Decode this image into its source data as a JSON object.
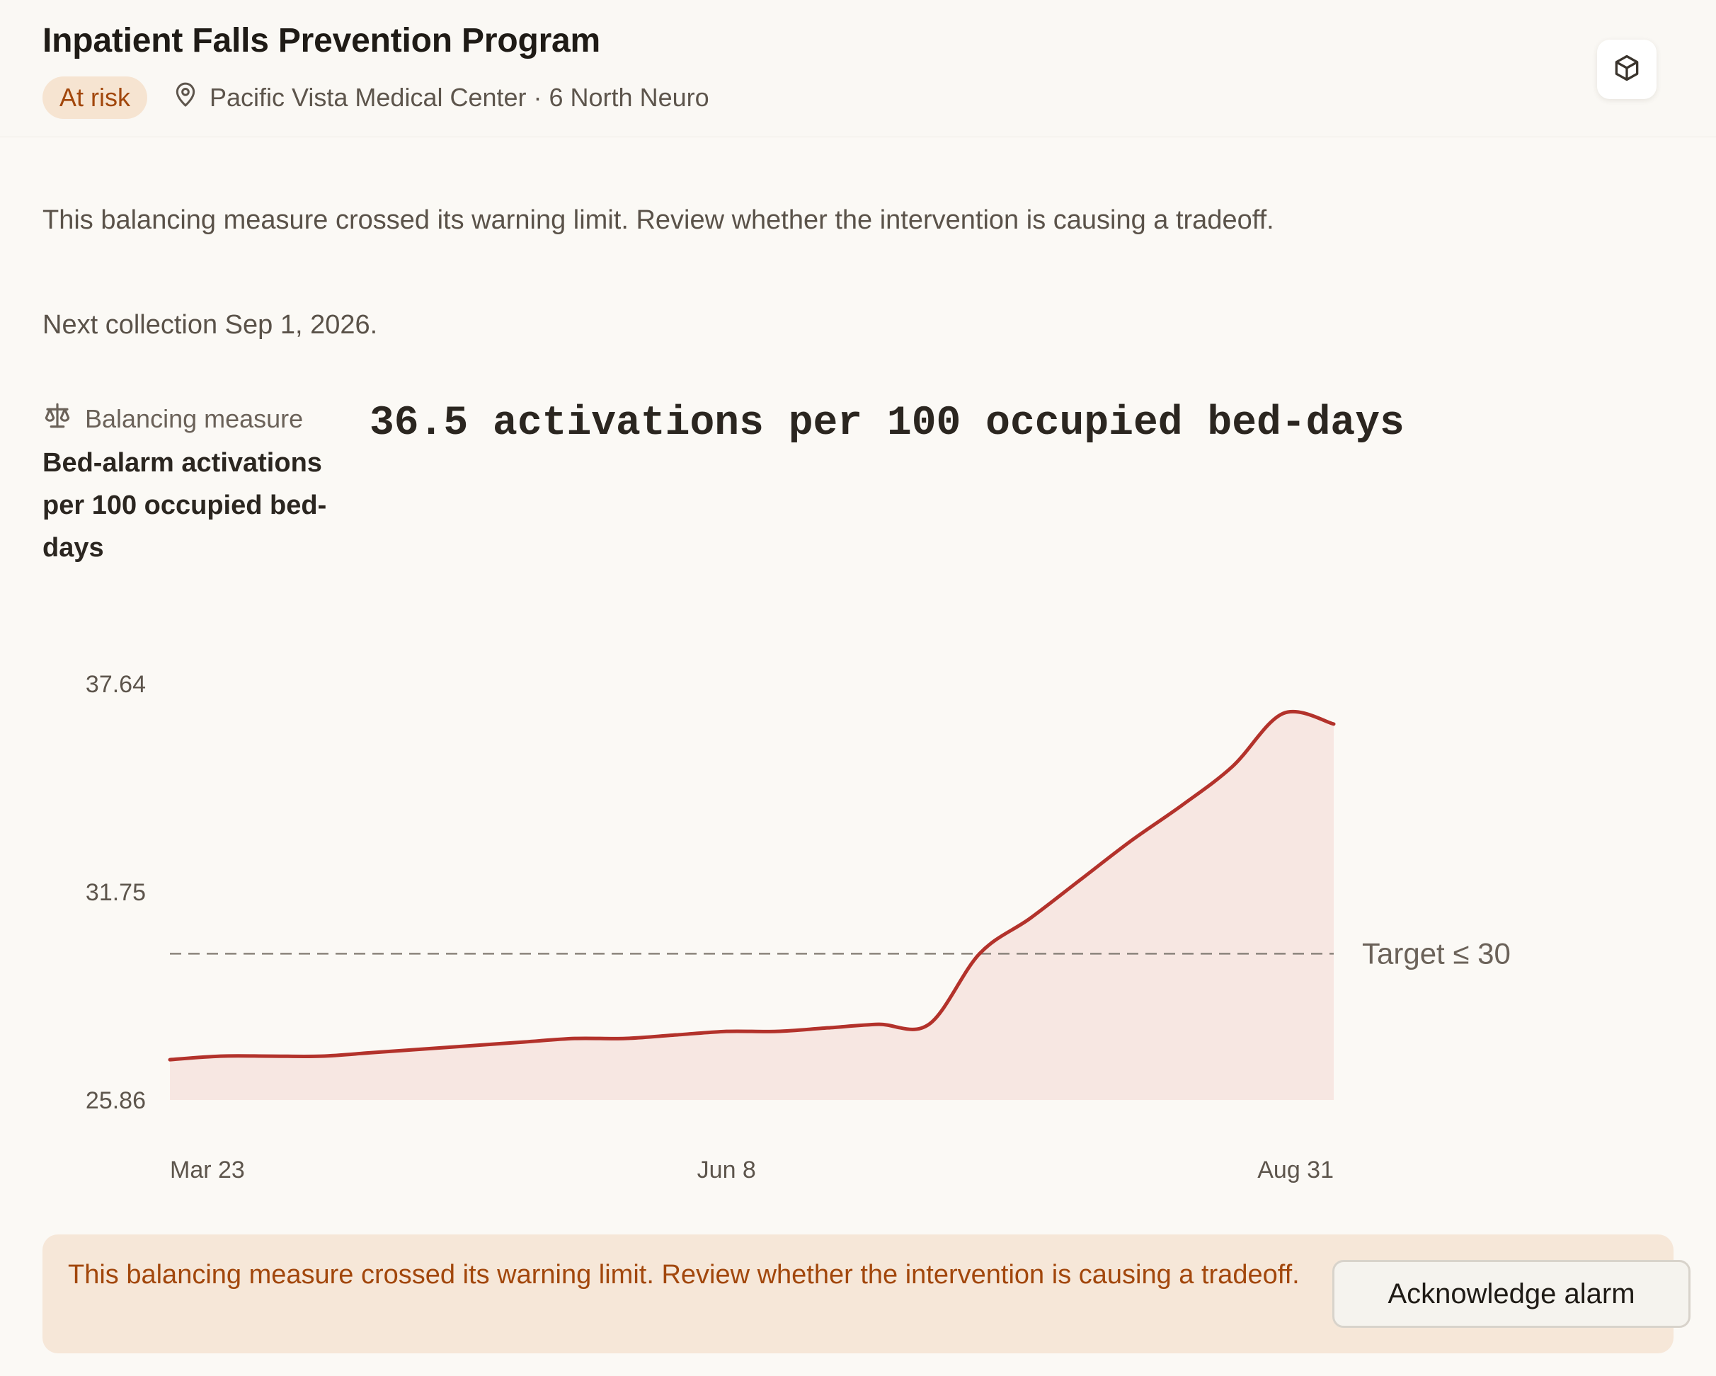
{
  "header": {
    "title": "Inpatient Falls Prevention Program",
    "status_badge": "At risk",
    "location": "Pacific Vista Medical Center · 6 North Neuro",
    "location_icon": "map-pin-icon",
    "action_icon": "cube-icon"
  },
  "summary": "This balancing measure crossed its warning limit. Review whether the intervention is causing a tradeoff.",
  "next_collection": "Next collection Sep 1, 2026.",
  "measure": {
    "kind_label": "Balancing measure",
    "kind_icon": "scale-icon",
    "name": "Bed-alarm activations per 100 occupied bed-days",
    "current_value": "36.5 activations per 100 occupied bed-days"
  },
  "colors": {
    "line": "#b3322b",
    "area": "#f7e7e2",
    "target": "#8a837b",
    "badge_bg": "#f6e4d1",
    "badge_text": "#a2470c"
  },
  "chart_data": {
    "type": "area",
    "x": [
      "2026-03-23",
      "2026-03-30",
      "2026-04-06",
      "2026-04-13",
      "2026-04-20",
      "2026-04-27",
      "2026-05-04",
      "2026-05-11",
      "2026-05-18",
      "2026-05-25",
      "2026-06-01",
      "2026-06-08",
      "2026-06-15",
      "2026-06-22",
      "2026-06-29",
      "2026-07-06",
      "2026-07-13",
      "2026-07-20",
      "2026-07-27",
      "2026-08-03",
      "2026-08-10",
      "2026-08-17",
      "2026-08-24",
      "2026-08-31"
    ],
    "series": [
      {
        "values": [
          27.0,
          27.1,
          27.1,
          27.1,
          27.2,
          27.3,
          27.4,
          27.5,
          27.6,
          27.6,
          27.7,
          27.8,
          27.8,
          27.9,
          28.0,
          28.0,
          30.0,
          31.0,
          32.1,
          33.2,
          34.2,
          35.3,
          36.8,
          36.5
        ]
      }
    ],
    "target": {
      "label": "Target ≤ 30",
      "value": 30
    },
    "y_ticks": [
      "37.64",
      "31.75",
      "25.86"
    ],
    "ylim": [
      25.86,
      37.64
    ],
    "x_ticks": [
      "Mar 23",
      "Jun 8",
      "Aug 31"
    ],
    "x_tick_indices": [
      0,
      11,
      23
    ]
  },
  "alert": {
    "message": "This balancing measure crossed its warning limit. Review whether the intervention is causing a tradeoff.",
    "button_label": "Acknowledge alarm"
  }
}
